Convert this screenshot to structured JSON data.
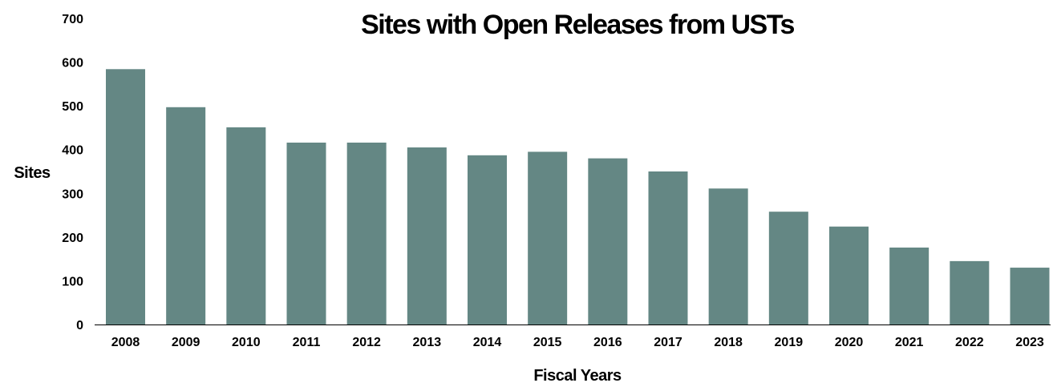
{
  "chart_data": {
    "type": "bar",
    "title": "Sites with Open Releases from USTs",
    "xlabel": "Fiscal Years",
    "ylabel": "Sites",
    "categories": [
      "2008",
      "2009",
      "2010",
      "2011",
      "2012",
      "2013",
      "2014",
      "2015",
      "2016",
      "2017",
      "2018",
      "2019",
      "2020",
      "2021",
      "2022",
      "2023"
    ],
    "values": [
      584,
      497,
      451,
      416,
      416,
      405,
      387,
      395,
      380,
      350,
      311,
      258,
      224,
      176,
      145,
      130
    ],
    "ylim": [
      0,
      700
    ],
    "yticks": [
      0,
      100,
      200,
      300,
      400,
      500,
      600,
      700
    ],
    "bar_color": "#648784",
    "grid": false,
    "legend": "none"
  }
}
